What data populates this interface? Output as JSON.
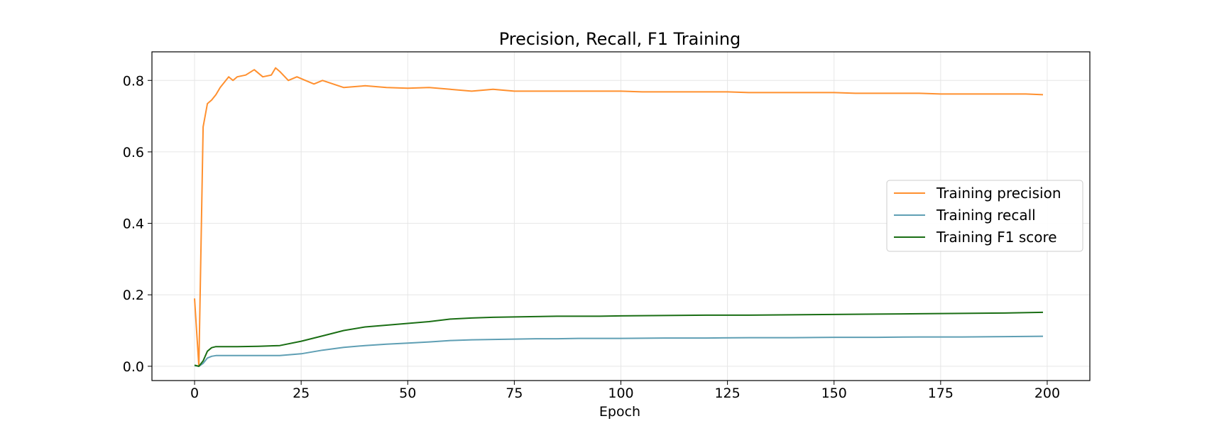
{
  "chart_data": {
    "type": "line",
    "title": "Precision, Recall, F1 Training",
    "xlabel": "Epoch",
    "ylabel": "",
    "xlim": [
      -10,
      210
    ],
    "ylim": [
      -0.04,
      0.88
    ],
    "xticks": [
      0,
      25,
      50,
      75,
      100,
      125,
      150,
      175,
      200
    ],
    "yticks": [
      0.0,
      0.2,
      0.4,
      0.6,
      0.8
    ],
    "xtick_labels": [
      "0",
      "25",
      "50",
      "75",
      "100",
      "125",
      "150",
      "175",
      "200"
    ],
    "ytick_labels": [
      "0.0",
      "0.2",
      "0.4",
      "0.6",
      "0.8"
    ],
    "grid": true,
    "legend_position": "center-right",
    "series": [
      {
        "name": "Training precision",
        "color": "#ff902f",
        "x": [
          0,
          1,
          2,
          3,
          4,
          5,
          6,
          7,
          8,
          9,
          10,
          12,
          14,
          16,
          18,
          19,
          20,
          22,
          24,
          26,
          28,
          30,
          35,
          40,
          45,
          50,
          55,
          60,
          65,
          70,
          75,
          80,
          85,
          90,
          95,
          100,
          105,
          110,
          115,
          120,
          125,
          130,
          135,
          140,
          145,
          150,
          155,
          160,
          165,
          170,
          175,
          180,
          185,
          190,
          195,
          199
        ],
        "values": [
          0.19,
          0.0,
          0.67,
          0.735,
          0.745,
          0.76,
          0.78,
          0.795,
          0.81,
          0.8,
          0.81,
          0.815,
          0.83,
          0.81,
          0.815,
          0.835,
          0.825,
          0.8,
          0.81,
          0.8,
          0.79,
          0.8,
          0.78,
          0.785,
          0.78,
          0.778,
          0.78,
          0.775,
          0.77,
          0.775,
          0.77,
          0.77,
          0.77,
          0.77,
          0.77,
          0.77,
          0.768,
          0.768,
          0.768,
          0.768,
          0.768,
          0.766,
          0.766,
          0.766,
          0.766,
          0.766,
          0.764,
          0.764,
          0.764,
          0.764,
          0.762,
          0.762,
          0.762,
          0.762,
          0.762,
          0.76
        ]
      },
      {
        "name": "Training recall",
        "color": "#5f9fb4",
        "x": [
          0,
          1,
          2,
          3,
          4,
          5,
          10,
          15,
          20,
          25,
          30,
          35,
          40,
          45,
          50,
          55,
          60,
          65,
          70,
          75,
          80,
          85,
          90,
          95,
          100,
          110,
          120,
          130,
          140,
          150,
          160,
          170,
          180,
          190,
          199
        ],
        "values": [
          0.002,
          0.0,
          0.008,
          0.023,
          0.028,
          0.03,
          0.03,
          0.03,
          0.03,
          0.035,
          0.045,
          0.053,
          0.058,
          0.062,
          0.065,
          0.068,
          0.072,
          0.074,
          0.075,
          0.076,
          0.077,
          0.077,
          0.078,
          0.078,
          0.078,
          0.079,
          0.079,
          0.08,
          0.08,
          0.081,
          0.081,
          0.082,
          0.082,
          0.083,
          0.084
        ]
      },
      {
        "name": "Training F1 score",
        "color": "#1a6e14",
        "x": [
          0,
          1,
          2,
          3,
          4,
          5,
          10,
          15,
          20,
          25,
          30,
          35,
          40,
          45,
          50,
          55,
          60,
          65,
          70,
          75,
          80,
          85,
          90,
          95,
          100,
          110,
          120,
          130,
          140,
          150,
          160,
          170,
          180,
          190,
          199
        ],
        "values": [
          0.003,
          0.0,
          0.015,
          0.042,
          0.052,
          0.055,
          0.055,
          0.056,
          0.058,
          0.07,
          0.085,
          0.1,
          0.11,
          0.115,
          0.12,
          0.125,
          0.132,
          0.135,
          0.137,
          0.138,
          0.139,
          0.14,
          0.14,
          0.14,
          0.141,
          0.142,
          0.143,
          0.143,
          0.144,
          0.145,
          0.146,
          0.147,
          0.148,
          0.149,
          0.151
        ]
      }
    ]
  }
}
